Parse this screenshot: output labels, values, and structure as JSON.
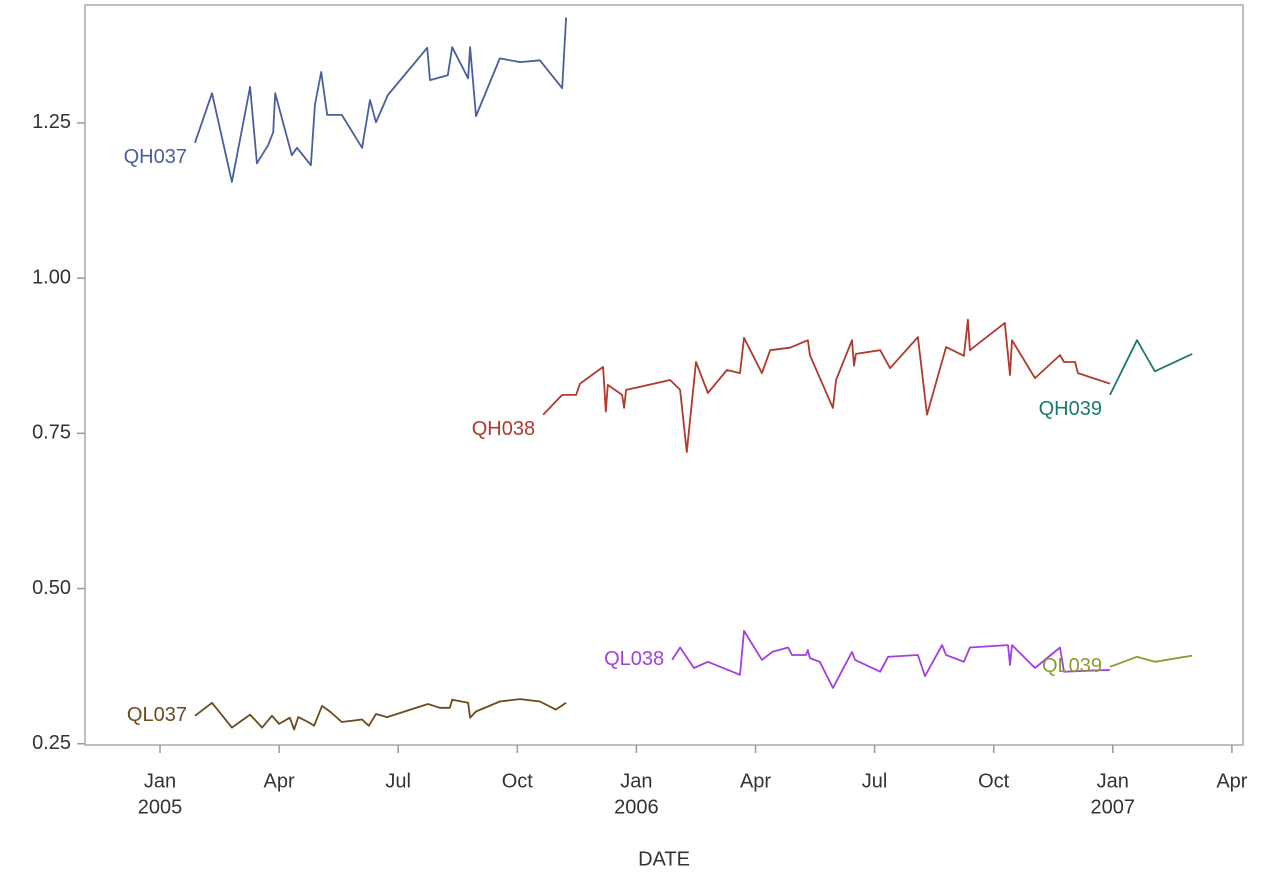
{
  "chart_data": {
    "type": "line",
    "x_label": "DATE",
    "xlim": [
      -1.89,
      27.28
    ],
    "ylim": [
      0.248,
      1.44
    ],
    "xticks": [
      {
        "value": 0,
        "label": [
          "Jan",
          "2005"
        ]
      },
      {
        "value": 3,
        "label": [
          "Apr"
        ]
      },
      {
        "value": 6,
        "label": [
          "Jul"
        ]
      },
      {
        "value": 9,
        "label": [
          "Oct"
        ]
      },
      {
        "value": 12,
        "label": [
          "Jan",
          "2006"
        ]
      },
      {
        "value": 15,
        "label": [
          "Apr"
        ]
      },
      {
        "value": 18,
        "label": [
          "Jul"
        ]
      },
      {
        "value": 21,
        "label": [
          "Oct"
        ]
      },
      {
        "value": 24,
        "label": [
          "Jan",
          "2007"
        ]
      },
      {
        "value": 27,
        "label": [
          "Apr"
        ]
      }
    ],
    "yticks": [
      0.25,
      {
        "value": 0.5,
        "label": "0.50"
      },
      0.75,
      {
        "value": 1,
        "label": "1.00"
      },
      1.25
    ],
    "series": [
      {
        "name": "QH037",
        "color": "#4a5e9b",
        "x": [
          0.88,
          1.31,
          1.81,
          2.27,
          2.44,
          2.72,
          2.85,
          2.9,
          3.32,
          3.45,
          3.8,
          3.9,
          4.06,
          4.21,
          4.58,
          5.09,
          5.29,
          5.44,
          5.74,
          6.73,
          6.8,
          7.25,
          7.36,
          7.76,
          7.81,
          7.96,
          8.56,
          9.07,
          9.57,
          10.13,
          10.23
        ],
        "values": [
          1.218,
          1.298,
          1.155,
          1.308,
          1.185,
          1.214,
          1.235,
          1.298,
          1.198,
          1.21,
          1.182,
          1.279,
          1.332,
          1.263,
          1.263,
          1.21,
          1.287,
          1.251,
          1.295,
          1.371,
          1.319,
          1.327,
          1.372,
          1.322,
          1.372,
          1.261,
          1.354,
          1.348,
          1.351,
          1.306,
          1.42
        ]
      },
      {
        "name": "QH038",
        "color": "#b03a2e",
        "x": [
          9.65,
          10.13,
          10.48,
          10.58,
          11.16,
          11.23,
          11.28,
          11.64,
          11.69,
          11.74,
          12.85,
          13.1,
          13.27,
          13.5,
          13.8,
          14.28,
          14.61,
          14.71,
          15.16,
          15.37,
          15.87,
          16.32,
          16.37,
          16.95,
          17.03,
          17.43,
          17.48,
          17.53,
          18.14,
          18.39,
          19.09,
          19.32,
          19.8,
          20.25,
          20.35,
          20.4,
          21.28,
          21.41,
          21.46,
          22.04,
          22.67,
          22.77,
          23.05,
          23.12,
          23.93
        ],
        "values": [
          0.78,
          0.812,
          0.812,
          0.83,
          0.857,
          0.785,
          0.828,
          0.812,
          0.791,
          0.82,
          0.836,
          0.82,
          0.72,
          0.865,
          0.815,
          0.852,
          0.847,
          0.904,
          0.847,
          0.884,
          0.888,
          0.9,
          0.876,
          0.791,
          0.836,
          0.9,
          0.859,
          0.878,
          0.884,
          0.855,
          0.905,
          0.78,
          0.889,
          0.875,
          0.933,
          0.884,
          0.928,
          0.844,
          0.9,
          0.839,
          0.876,
          0.865,
          0.865,
          0.847,
          0.83
        ]
      },
      {
        "name": "QH039",
        "color": "#1b7a6e",
        "x": [
          23.93,
          24.61,
          25.06,
          26.0
        ],
        "values": [
          0.812,
          0.9,
          0.85,
          0.878
        ]
      },
      {
        "name": "QL037",
        "color": "#6b4a1c",
        "x": [
          0.88,
          1.31,
          1.81,
          2.27,
          2.57,
          2.82,
          3.0,
          3.27,
          3.38,
          3.48,
          3.73,
          3.88,
          4.08,
          4.28,
          4.58,
          5.09,
          5.26,
          5.44,
          5.72,
          6.75,
          7.05,
          7.3,
          7.36,
          7.76,
          7.81,
          7.96,
          8.56,
          9.07,
          9.57,
          9.97,
          10.23
        ],
        "values": [
          0.295,
          0.316,
          0.276,
          0.297,
          0.276,
          0.295,
          0.282,
          0.292,
          0.273,
          0.293,
          0.285,
          0.279,
          0.311,
          0.302,
          0.285,
          0.289,
          0.279,
          0.298,
          0.293,
          0.314,
          0.308,
          0.308,
          0.321,
          0.316,
          0.292,
          0.302,
          0.318,
          0.322,
          0.318,
          0.305,
          0.316
        ]
      },
      {
        "name": "QL038",
        "color": "#a23fe0",
        "x": [
          12.9,
          13.1,
          13.45,
          13.8,
          14.61,
          14.71,
          15.16,
          15.42,
          15.82,
          15.92,
          16.27,
          16.32,
          16.37,
          16.62,
          16.95,
          17.43,
          17.51,
          18.14,
          18.34,
          19.09,
          19.27,
          19.7,
          19.8,
          20.25,
          20.4,
          21.36,
          21.41,
          21.46,
          22.04,
          22.67,
          22.77,
          23.93
        ],
        "values": [
          0.385,
          0.405,
          0.372,
          0.382,
          0.361,
          0.432,
          0.385,
          0.398,
          0.405,
          0.393,
          0.393,
          0.401,
          0.388,
          0.382,
          0.34,
          0.398,
          0.385,
          0.366,
          0.39,
          0.393,
          0.359,
          0.409,
          0.393,
          0.382,
          0.405,
          0.409,
          0.377,
          0.409,
          0.372,
          0.405,
          0.366,
          0.369
        ]
      },
      {
        "name": "QL039",
        "color": "#8a9a32",
        "x": [
          23.93,
          24.61,
          25.06,
          26.0
        ],
        "values": [
          0.374,
          0.39,
          0.382,
          0.392
        ]
      }
    ]
  }
}
